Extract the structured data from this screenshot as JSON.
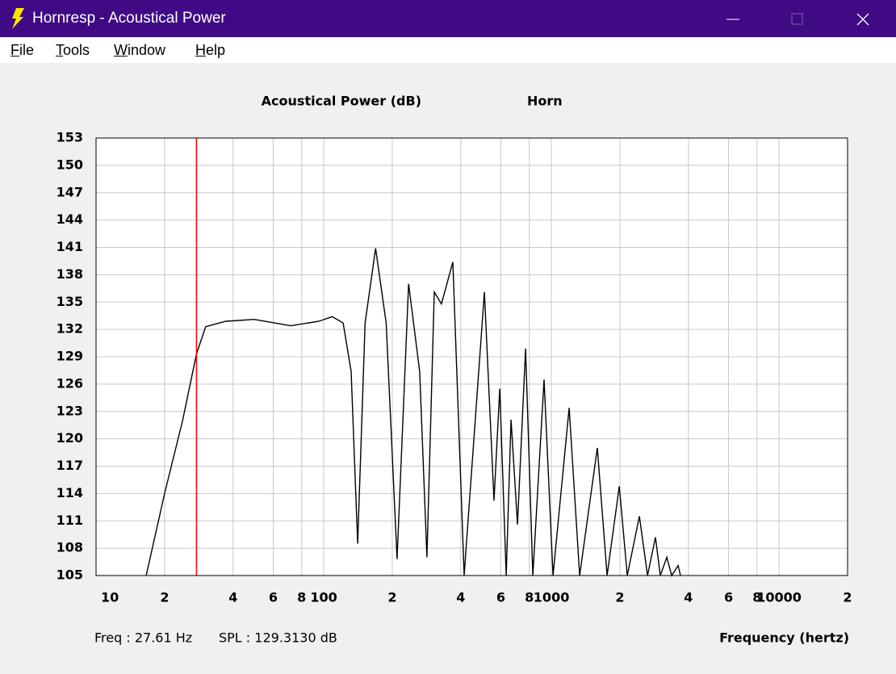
{
  "window": {
    "title": "Hornresp - Acoustical Power",
    "menu": [
      "File",
      "Tools",
      "Window",
      "Help"
    ]
  },
  "chart_data": {
    "type": "line",
    "title": "Acoustical Power (dB)",
    "subtitle": "Horn",
    "x_label": "Frequency (hertz)",
    "x": [
      16.6,
      20,
      24,
      27.61,
      30.3,
      37.2,
      49.5,
      71.6,
      95.3,
      109,
      121.7,
      132,
      141,
      152,
      169,
      188,
      210,
      236,
      264,
      284,
      306,
      329,
      369,
      414,
      508,
      560,
      593,
      633,
      665,
      710,
      770,
      829,
      929,
      1017,
      1197,
      1331,
      1592,
      1757,
      1987,
      2155,
      2436,
      2644,
      2866,
      3010,
      3214,
      3375,
      3605,
      3690
    ],
    "series": [
      {
        "name": "Horn",
        "color": "#000000",
        "values": [
          105,
          114,
          122,
          129.3,
          132.3,
          132.9,
          133.1,
          132.4,
          132.9,
          133.4,
          132.7,
          127.4,
          108.5,
          132.7,
          140.9,
          132.7,
          106.8,
          137,
          127.4,
          107,
          136.1,
          134.8,
          139.4,
          105,
          136.1,
          113.2,
          125.5,
          105,
          122.1,
          110.6,
          129.9,
          105,
          126.5,
          105,
          123.4,
          105,
          119,
          105,
          114.8,
          105,
          111.5,
          105,
          109.2,
          105,
          107,
          105,
          106.1,
          105
        ]
      }
    ],
    "xlim": [
      10,
      20000
    ],
    "log_x": true,
    "xticks": [
      10,
      {
        "value": 20,
        "label": "2"
      },
      {
        "value": 40,
        "label": "4"
      },
      {
        "value": 60,
        "label": "6"
      },
      {
        "value": 80,
        "label": "8"
      },
      100,
      {
        "value": 200,
        "label": "2"
      },
      {
        "value": 400,
        "label": "4"
      },
      {
        "value": 600,
        "label": "6"
      },
      {
        "value": 800,
        "label": "8"
      },
      1000,
      {
        "value": 2000,
        "label": "2"
      },
      {
        "value": 4000,
        "label": "4"
      },
      {
        "value": 6000,
        "label": "6"
      },
      {
        "value": 8000,
        "label": "8"
      },
      10000,
      {
        "value": 20000,
        "label": "2"
      }
    ],
    "ylim": [
      105,
      153
    ],
    "yticks": [
      105,
      108,
      111,
      114,
      117,
      120,
      123,
      126,
      129,
      132,
      135,
      138,
      141,
      144,
      147,
      150,
      153
    ],
    "grid": true,
    "cursor_x": 27.61,
    "cursor_color": "#ff0000",
    "status": [
      "Freq : 27.61 Hz",
      "SPL : 129.3130 dB"
    ]
  }
}
